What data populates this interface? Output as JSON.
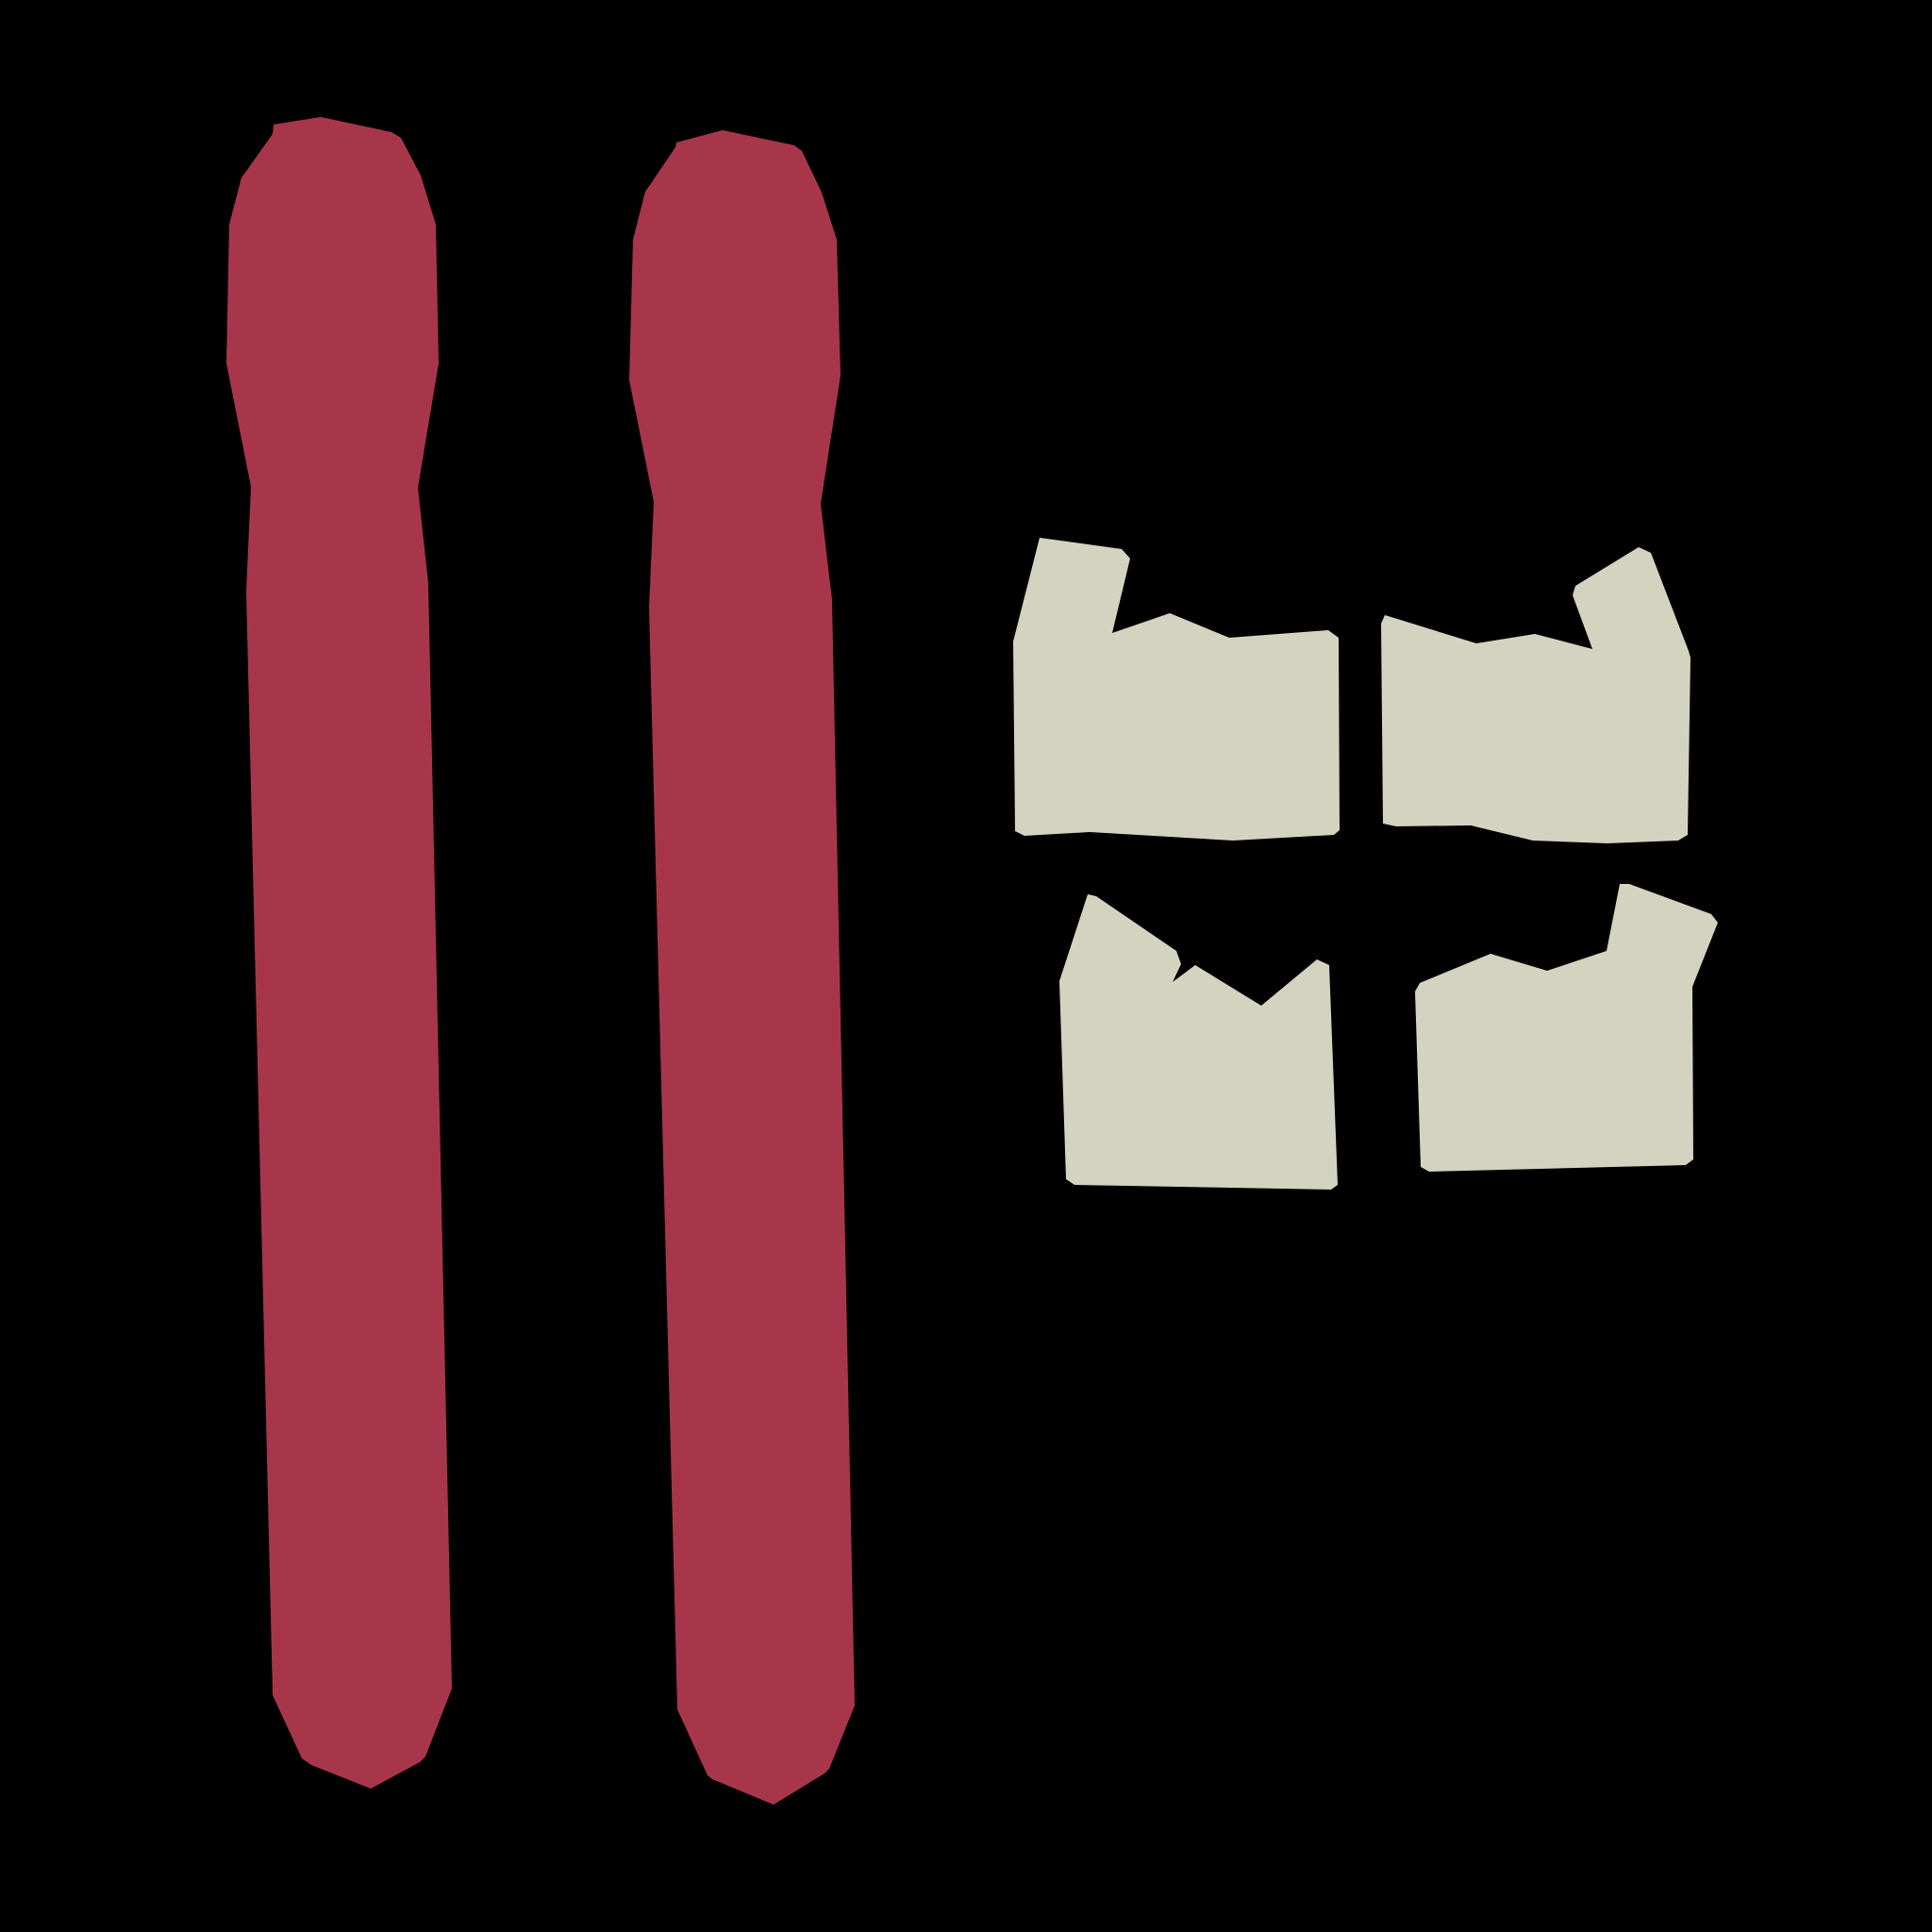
{
  "background_color": "#000000",
  "colors": {
    "strip": "#A8364A",
    "tile": "#D4D3C0"
  },
  "shapes": {
    "strips": [
      {
        "name": "left-red-strip",
        "shape": "elongated-rounded-bar"
      },
      {
        "name": "right-red-strip",
        "shape": "elongated-rounded-bar"
      }
    ],
    "tiles": [
      {
        "name": "top-left-tile",
        "shape": "notched-tile"
      },
      {
        "name": "top-right-tile",
        "shape": "notched-tile"
      },
      {
        "name": "bottom-left-tile",
        "shape": "notched-tile"
      },
      {
        "name": "bottom-right-tile",
        "shape": "notched-tile"
      }
    ]
  }
}
